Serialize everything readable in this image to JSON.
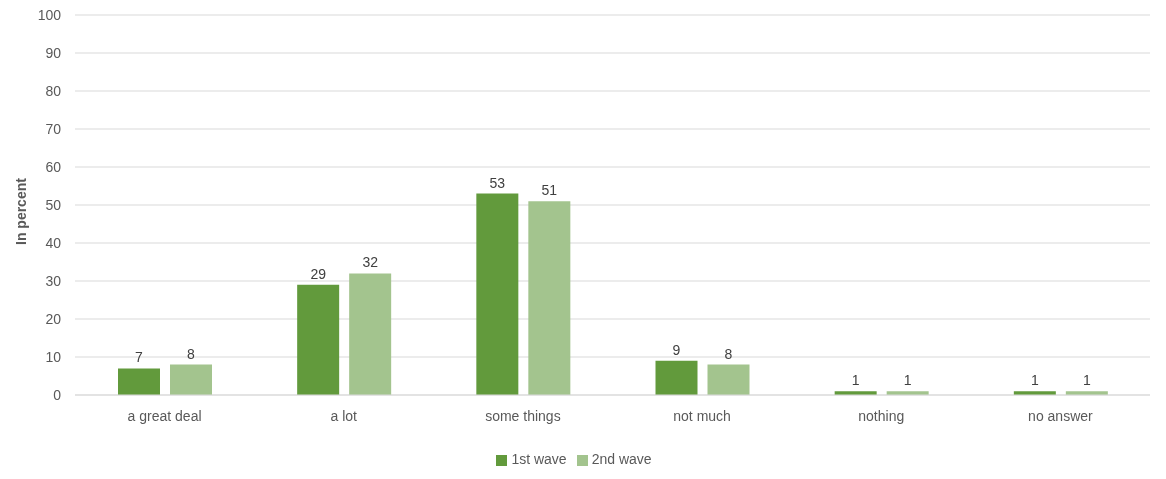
{
  "chart_data": {
    "type": "bar",
    "ylabel": "In percent",
    "categories": [
      "a great deal",
      "a lot",
      "some things",
      "not much",
      "nothing",
      "no answer"
    ],
    "series": [
      {
        "name": "1st wave",
        "color": "#629a3c",
        "values": [
          7,
          29,
          53,
          9,
          1,
          1
        ]
      },
      {
        "name": "2nd wave",
        "color": "#a3c48e",
        "values": [
          8,
          32,
          51,
          8,
          1,
          1
        ]
      }
    ],
    "ylim": [
      0,
      100
    ],
    "yticks": [
      0,
      10,
      20,
      30,
      40,
      50,
      60,
      70,
      80,
      90,
      100
    ],
    "grid": "y",
    "legend": "bottom",
    "data_labels": true
  }
}
